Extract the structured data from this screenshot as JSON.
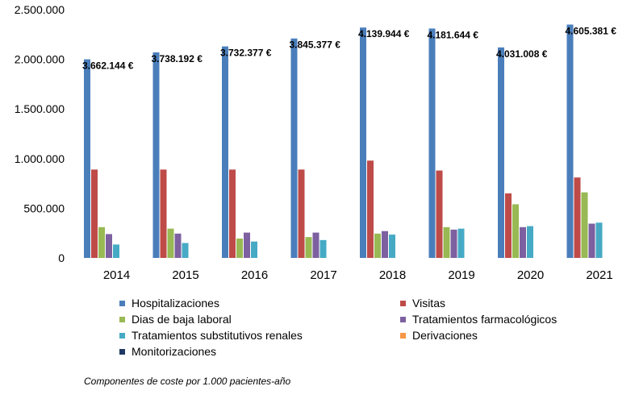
{
  "chart_data": {
    "type": "bar",
    "caption": "Componentes de coste por 1.000 pacientes-año",
    "categories": [
      "2014",
      "2015",
      "2016",
      "2017",
      "2018",
      "2019",
      "2020",
      "2021"
    ],
    "ylim": [
      0,
      2500000
    ],
    "yticks": [
      0,
      500000,
      1000000,
      1500000,
      2000000,
      2500000
    ],
    "ytick_labels": [
      "0",
      "500.000",
      "1.000.000",
      "1.500.000",
      "2.000.000",
      "2.500.000"
    ],
    "grid": false,
    "legend_position": "bottom",
    "series": [
      {
        "name": "Hospitalizaciones",
        "color": "#4a7ebb",
        "values": [
          2000000,
          2070000,
          2130000,
          2210000,
          2320000,
          2310000,
          2120000,
          2350000
        ]
      },
      {
        "name": "Visitas",
        "color": "#be4b48",
        "values": [
          890000,
          890000,
          890000,
          890000,
          980000,
          880000,
          650000,
          810000
        ]
      },
      {
        "name": "Dias de baja laboral",
        "color": "#98b954",
        "values": [
          310000,
          295000,
          195000,
          210000,
          245000,
          310000,
          540000,
          660000
        ]
      },
      {
        "name": "Tratamientos farmacológicos",
        "color": "#7d60a0",
        "values": [
          240000,
          245000,
          255000,
          255000,
          270000,
          285000,
          310000,
          345000
        ]
      },
      {
        "name": "Tratamientos substitutivos renales",
        "color": "#46aac5",
        "values": [
          135000,
          150000,
          165000,
          180000,
          235000,
          295000,
          320000,
          355000
        ]
      },
      {
        "name": "Derivaciones",
        "color": "#f79646",
        "values": [
          0,
          0,
          0,
          0,
          0,
          0,
          0,
          0
        ]
      },
      {
        "name": "Monitorizaciones",
        "color": "#1f3864",
        "values": [
          0,
          0,
          0,
          0,
          0,
          0,
          0,
          0
        ]
      }
    ],
    "annotations": [
      "3.662.144 €",
      "3.738.192 €",
      "3.732.377 €",
      "3.845.377 €",
      "4.139.944 €",
      "4.181.644 €",
      "4.031.008 €",
      "4.605.381 €"
    ]
  }
}
